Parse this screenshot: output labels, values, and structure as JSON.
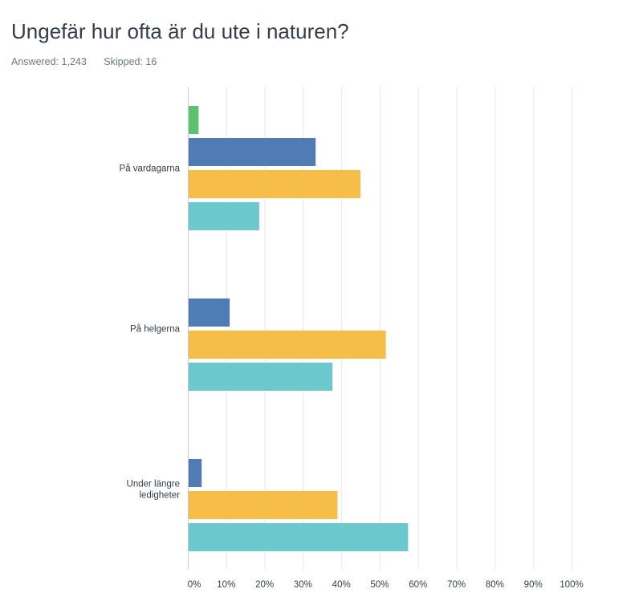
{
  "header": {
    "title": "Ungefär hur ofta är du ute i naturen?",
    "answered_label": "Answered: 1,243",
    "skipped_label": "Skipped: 16"
  },
  "chart_data": {
    "type": "bar",
    "orientation": "horizontal",
    "title": "Ungefär hur ofta är du ute i naturen?",
    "xlabel": "",
    "ylabel": "",
    "xlim": [
      0,
      100
    ],
    "tick_values": [
      0,
      10,
      20,
      30,
      40,
      50,
      60,
      70,
      80,
      90,
      100
    ],
    "tick_labels": [
      "0%",
      "10%",
      "20%",
      "30%",
      "40%",
      "50%",
      "60%",
      "70%",
      "80%",
      "90%",
      "100%"
    ],
    "grid": true,
    "legend": "none",
    "categories": [
      [
        "På vardagarna"
      ],
      [
        "På helgerna"
      ],
      [
        "Under längre",
        "ledigheter"
      ]
    ],
    "series": [
      {
        "color": "#5ec16f",
        "values": [
          2.8,
          0,
          0
        ]
      },
      {
        "color": "#507cb6",
        "values": [
          33.3,
          10.9,
          3.6
        ]
      },
      {
        "color": "#f6be47",
        "values": [
          45,
          51.6,
          39
        ]
      },
      {
        "color": "#6bc8cd",
        "values": [
          18.6,
          37.7,
          57.4
        ]
      }
    ]
  }
}
